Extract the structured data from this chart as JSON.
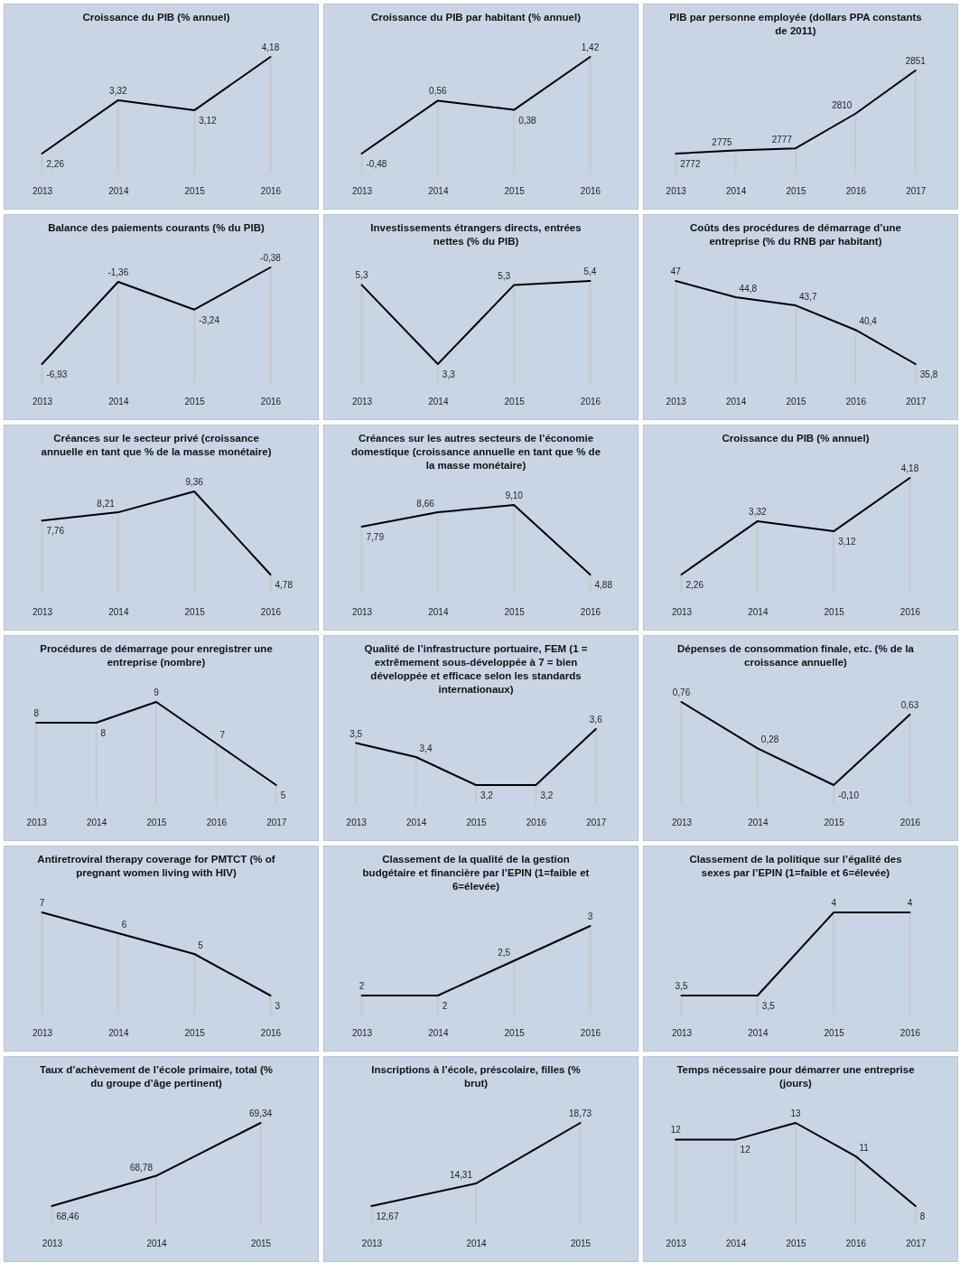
{
  "chart_data": [
    {
      "type": "line",
      "title": "Croissance du PIB (% annuel)",
      "categories": [
        "2013",
        "2014",
        "2015",
        "2016"
      ],
      "values": [
        2.26,
        3.32,
        3.12,
        4.18
      ],
      "value_labels": [
        "2,26",
        "3,32",
        "3,12",
        "4,18"
      ],
      "color": "#000000",
      "tick_labels": "x",
      "grid": "x"
    },
    {
      "type": "line",
      "title": "Croissance du PIB par habitant (% annuel)",
      "categories": [
        "2013",
        "2014",
        "2015",
        "2016"
      ],
      "values": [
        -0.48,
        0.56,
        0.38,
        1.42
      ],
      "value_labels": [
        "-0,48",
        "0,56",
        "0,38",
        "1,42"
      ],
      "color": "#000000",
      "tick_labels": "x",
      "grid": "x"
    },
    {
      "type": "line",
      "title": "PIB par personne employée (dollars PPA constants de 2011)",
      "categories": [
        "2013",
        "2014",
        "2015",
        "2016",
        "2017"
      ],
      "values": [
        2772,
        2775,
        2777,
        2810,
        2851
      ],
      "value_labels": [
        "2772",
        "2775",
        "2777",
        "2810",
        "2851"
      ],
      "color": "#000000",
      "tick_labels": "x",
      "grid": "x"
    },
    {
      "type": "line",
      "title": "Balance des paiements courants (% du PIB)",
      "categories": [
        "2013",
        "2014",
        "2015",
        "2016"
      ],
      "values": [
        -6.93,
        -1.36,
        -3.24,
        -0.38
      ],
      "value_labels": [
        "-6,93",
        "-1,36",
        "-3,24",
        "-0,38"
      ],
      "color": "#000000",
      "tick_labels": "x",
      "grid": "x"
    },
    {
      "type": "line",
      "title": "Investissements étrangers directs, entrées nettes (% du PIB)",
      "categories": [
        "2013",
        "2014",
        "2015",
        "2016"
      ],
      "values": [
        5.3,
        3.3,
        5.3,
        5.4
      ],
      "value_labels": [
        "5,3",
        "3,3",
        "5,3",
        "5,4"
      ],
      "color": "#000000",
      "tick_labels": "x",
      "grid": "x"
    },
    {
      "type": "line",
      "title": "Coûts des procédures de démarrage d’une entreprise (% du RNB par habitant)",
      "categories": [
        "2013",
        "2014",
        "2015",
        "2016",
        "2017"
      ],
      "values": [
        47,
        44.8,
        43.7,
        40.4,
        35.8
      ],
      "value_labels": [
        "47",
        "44,8",
        "43,7",
        "40,4",
        "35,8"
      ],
      "color": "#000000",
      "tick_labels": "x",
      "grid": "x"
    },
    {
      "type": "line",
      "title": "Créances sur le secteur privé (croissance annuelle en tant que % de la masse monétaire)",
      "categories": [
        "2013",
        "2014",
        "2015",
        "2016"
      ],
      "values": [
        7.76,
        8.21,
        9.36,
        4.78
      ],
      "value_labels": [
        "7,76",
        "8,21",
        "9,36",
        "4,78"
      ],
      "color": "#000000",
      "tick_labels": "x",
      "grid": "x"
    },
    {
      "type": "line",
      "title": "Créances sur les autres secteurs de l’économie domestique (croissance annuelle en tant que % de la masse monétaire)",
      "categories": [
        "2013",
        "2014",
        "2015",
        "2016"
      ],
      "values": [
        7.79,
        8.66,
        9.1,
        4.88
      ],
      "value_labels": [
        "7,79",
        "8,66",
        "9,10",
        "4,88"
      ],
      "color": "#000000",
      "tick_labels": "x",
      "grid": "x"
    },
    {
      "type": "line",
      "title": "Croissance du PIB (% annuel)",
      "categories": [
        "2013",
        "2014",
        "2015",
        "2016"
      ],
      "values": [
        2.26,
        3.32,
        3.12,
        4.18
      ],
      "value_labels": [
        "2,26",
        "3,32",
        "3,12",
        "4,18"
      ],
      "color": "#000000",
      "tick_labels": "x",
      "grid": "x"
    },
    {
      "type": "line",
      "title": "Procédures de démarrage pour enregistrer une entreprise (nombre)",
      "categories": [
        "2013",
        "2014",
        "2015",
        "2016",
        "2017"
      ],
      "values": [
        8,
        8,
        9,
        7,
        5
      ],
      "value_labels": [
        "8",
        "8",
        "9",
        "7",
        "5"
      ],
      "color": "#000000",
      "tick_labels": "x",
      "grid": "x"
    },
    {
      "type": "line",
      "title": "Qualité de l’infrastructure portuaire, FEM (1 = extrêmement sous-développée à 7 = bien développée et efficace selon les standards internationaux)",
      "categories": [
        "2013",
        "2014",
        "2015",
        "2016",
        "2017"
      ],
      "values": [
        3.5,
        3.4,
        3.2,
        3.2,
        3.6
      ],
      "value_labels": [
        "3,5",
        "3,4",
        "3,2",
        "3,2",
        "3,6"
      ],
      "color": "#000000",
      "tick_labels": "x",
      "grid": "x"
    },
    {
      "type": "line",
      "title": "Dépenses de consommation finale, etc. (% de la croissance annuelle)",
      "categories": [
        "2013",
        "2014",
        "2015",
        "2016"
      ],
      "values": [
        0.76,
        0.28,
        -0.1,
        0.63
      ],
      "value_labels": [
        "0,76",
        "0,28",
        "-0,10",
        "0,63"
      ],
      "color": "#000000",
      "tick_labels": "x",
      "grid": "x"
    },
    {
      "type": "line",
      "title": "Antiretroviral therapy coverage for PMTCT (% of pregnant women living with HIV)",
      "categories": [
        "2013",
        "2014",
        "2015",
        "2016"
      ],
      "values": [
        7,
        6,
        5,
        3
      ],
      "value_labels": [
        "7",
        "6",
        "5",
        "3"
      ],
      "color": "#000000",
      "tick_labels": "x",
      "grid": "x"
    },
    {
      "type": "line",
      "title": "Classement de la qualité de la gestion budgétaire et financière par l’EPIN (1=faible et 6=élevée)",
      "categories": [
        "2013",
        "2014",
        "2015",
        "2016"
      ],
      "values": [
        2,
        2,
        2.5,
        3
      ],
      "value_labels": [
        "2",
        "2",
        "2,5",
        "3"
      ],
      "color": "#000000",
      "tick_labels": "x",
      "grid": "x"
    },
    {
      "type": "line",
      "title": "Classement de la politique sur l’égalité des sexes par l’EPIN (1=faible et 6=élevée)",
      "categories": [
        "2013",
        "2014",
        "2015",
        "2016"
      ],
      "values": [
        3.5,
        3.5,
        4,
        4
      ],
      "value_labels": [
        "3,5",
        "3,5",
        "4",
        "4"
      ],
      "color": "#000000",
      "tick_labels": "x",
      "grid": "x"
    },
    {
      "type": "line",
      "title": "Taux d’achèvement de l’école primaire, total (% du groupe d’âge pertinent)",
      "categories": [
        "2013",
        "2014",
        "2015"
      ],
      "values": [
        68.46,
        68.78,
        69.34
      ],
      "value_labels": [
        "68,46",
        "68,78",
        "69,34"
      ],
      "color": "#000000",
      "tick_labels": "x",
      "grid": "x"
    },
    {
      "type": "line",
      "title": "Inscriptions à l’école, préscolaire, filles (% brut)",
      "categories": [
        "2013",
        "2014",
        "2015"
      ],
      "values": [
        12.67,
        14.31,
        18.73
      ],
      "value_labels": [
        "12,67",
        "14,31",
        "18,73"
      ],
      "color": "#000000",
      "tick_labels": "x",
      "grid": "x"
    },
    {
      "type": "line",
      "title": "Temps nécessaire pour démarrer une entreprise (jours)",
      "categories": [
        "2013",
        "2014",
        "2015",
        "2016",
        "2017"
      ],
      "values": [
        12,
        12,
        13,
        11,
        8
      ],
      "value_labels": [
        "12",
        "12",
        "13",
        "11",
        "8"
      ],
      "color": "#000000",
      "tick_labels": "x",
      "grid": "x"
    }
  ]
}
